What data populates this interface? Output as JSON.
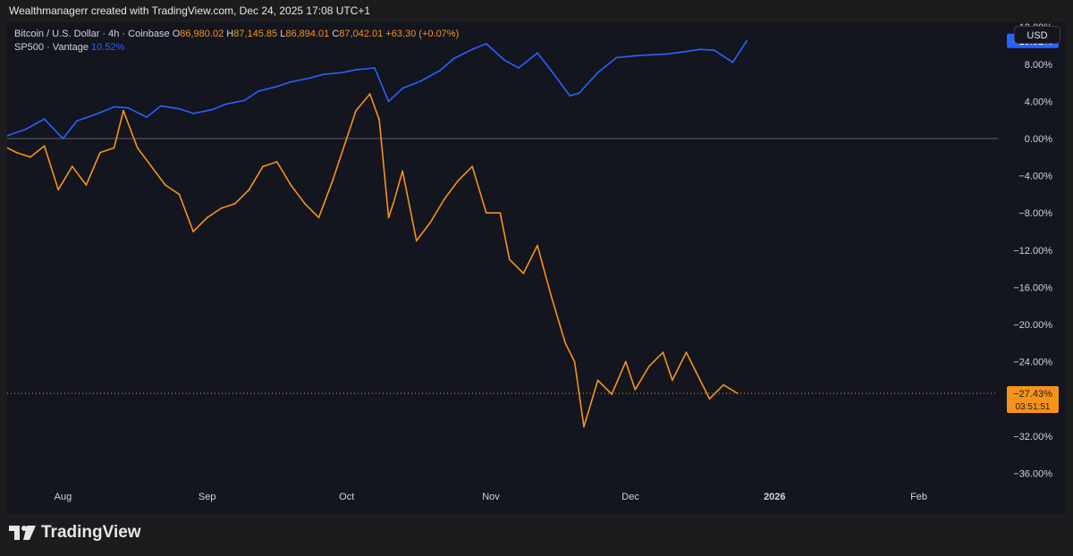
{
  "header": {
    "attribution": "Wealthmanagerr created with TradingView.com, Dec 24, 2025 17:08 UTC+1"
  },
  "legend": {
    "symbol": "Bitcoin / U.S. Dollar · 4h · Coinbase",
    "o_label": "O",
    "o_value": "86,980.02",
    "h_label": "H",
    "h_value": "87,145.85",
    "l_label": "L",
    "l_value": "86,894.01",
    "c_label": "C",
    "c_value": "87,042.01",
    "change": "+63.30 (+0.07%)",
    "compare_symbol": "SP500 · Vantage",
    "compare_value": "10.52%"
  },
  "currency_button": "USD",
  "price_tags": {
    "sp500": "+10.52%",
    "btc_pct": "−27.43%",
    "btc_timer": "03:51:51"
  },
  "colors": {
    "btc": "#f7931a",
    "sp500": "#2962ff",
    "background": "#13151f",
    "text": "#d1d4dc",
    "zero_line": "#5d606b"
  },
  "brand": {
    "name": "TradingView",
    "icon": "tradingview-logo-icon"
  },
  "chart_data": {
    "type": "line",
    "title": "",
    "xlabel": "",
    "ylabel": "",
    "x_ticks": [
      "Aug",
      "Sep",
      "Oct",
      "Nov",
      "Dec",
      "2026",
      "Feb"
    ],
    "y_ticks": [
      "12.00%",
      "8.00%",
      "4.00%",
      "0.00%",
      "−4.00%",
      "−8.00%",
      "−12.00%",
      "−16.00%",
      "−20.00%",
      "−24.00%",
      "−28.00%",
      "−32.00%",
      "−36.00%"
    ],
    "y_tick_values": [
      12,
      8,
      4,
      0,
      -4,
      -8,
      -12,
      -16,
      -20,
      -24,
      -28,
      -32,
      -36
    ],
    "ylim": [
      -37.5,
      12.5
    ],
    "x_range": [
      "2025-07-20",
      "2026-02-18"
    ],
    "x_tick_dates": [
      "2025-08-01",
      "2025-09-01",
      "2025-10-01",
      "2025-11-01",
      "2025-12-01",
      "2026-01-01",
      "2026-02-01"
    ],
    "series": [
      {
        "name": "SP500 · Vantage",
        "x": [
          "2025-07-20",
          "2025-07-24",
          "2025-07-28",
          "2025-08-01",
          "2025-08-04",
          "2025-08-08",
          "2025-08-12",
          "2025-08-15",
          "2025-08-19",
          "2025-08-22",
          "2025-08-26",
          "2025-08-29",
          "2025-09-02",
          "2025-09-05",
          "2025-09-09",
          "2025-09-12",
          "2025-09-16",
          "2025-09-19",
          "2025-09-23",
          "2025-09-26",
          "2025-09-30",
          "2025-10-03",
          "2025-10-07",
          "2025-10-10",
          "2025-10-13",
          "2025-10-17",
          "2025-10-21",
          "2025-10-24",
          "2025-10-28",
          "2025-10-31",
          "2025-11-04",
          "2025-11-07",
          "2025-11-11",
          "2025-11-14",
          "2025-11-18",
          "2025-11-20",
          "2025-11-24",
          "2025-11-28",
          "2025-12-02",
          "2025-12-05",
          "2025-12-09",
          "2025-12-12",
          "2025-12-16",
          "2025-12-19",
          "2025-12-23",
          "2025-12-26"
        ],
        "values": [
          0.3,
          1.0,
          2.1,
          0.0,
          1.9,
          2.6,
          3.4,
          3.3,
          2.3,
          3.5,
          3.2,
          2.7,
          3.1,
          3.7,
          4.1,
          5.1,
          5.6,
          6.1,
          6.5,
          6.9,
          7.1,
          7.4,
          7.6,
          4.0,
          5.4,
          6.2,
          7.3,
          8.6,
          9.6,
          10.2,
          8.4,
          7.6,
          9.2,
          7.3,
          4.6,
          4.9,
          7.1,
          8.7,
          8.9,
          9.0,
          9.1,
          9.3,
          9.6,
          9.5,
          8.2,
          10.5
        ]
      },
      {
        "name": "Bitcoin / U.S. Dollar · 4h · Coinbase",
        "x": [
          "2025-07-20",
          "2025-07-22",
          "2025-07-25",
          "2025-07-28",
          "2025-07-31",
          "2025-08-03",
          "2025-08-06",
          "2025-08-09",
          "2025-08-12",
          "2025-08-14",
          "2025-08-17",
          "2025-08-20",
          "2025-08-23",
          "2025-08-26",
          "2025-08-29",
          "2025-09-01",
          "2025-09-04",
          "2025-09-07",
          "2025-09-10",
          "2025-09-13",
          "2025-09-16",
          "2025-09-19",
          "2025-09-22",
          "2025-09-25",
          "2025-09-28",
          "2025-10-01",
          "2025-10-03",
          "2025-10-06",
          "2025-10-08",
          "2025-10-10",
          "2025-10-11",
          "2025-10-13",
          "2025-10-16",
          "2025-10-19",
          "2025-10-22",
          "2025-10-25",
          "2025-10-28",
          "2025-10-31",
          "2025-11-03",
          "2025-11-05",
          "2025-11-08",
          "2025-11-11",
          "2025-11-14",
          "2025-11-17",
          "2025-11-19",
          "2025-11-21",
          "2025-11-24",
          "2025-11-27",
          "2025-11-30",
          "2025-12-02",
          "2025-12-05",
          "2025-12-08",
          "2025-12-10",
          "2025-12-13",
          "2025-12-15",
          "2025-12-18",
          "2025-12-21",
          "2025-12-24"
        ],
        "values": [
          -1.0,
          -1.5,
          -2.0,
          -0.8,
          -5.5,
          -3.0,
          -5.0,
          -1.5,
          -1.0,
          3.0,
          -1.0,
          -3.0,
          -5.0,
          -6.0,
          -10.0,
          -8.5,
          -7.5,
          -7.0,
          -5.5,
          -3.0,
          -2.5,
          -5.0,
          -7.0,
          -8.5,
          -4.5,
          0.0,
          3.0,
          4.8,
          2.0,
          -8.5,
          -7.0,
          -3.5,
          -11.0,
          -9.0,
          -6.5,
          -4.5,
          -3.0,
          -8.0,
          -8.0,
          -13.0,
          -14.5,
          -11.5,
          -17.0,
          -22.0,
          -24.0,
          -31.0,
          -26.0,
          -27.5,
          -24.0,
          -27.0,
          -24.5,
          -23.0,
          -26.0,
          -23.0,
          -25.0,
          -28.0,
          -26.5,
          -27.4
        ]
      }
    ],
    "reference_line": 0,
    "grid": false,
    "legend_position": "top-left"
  }
}
